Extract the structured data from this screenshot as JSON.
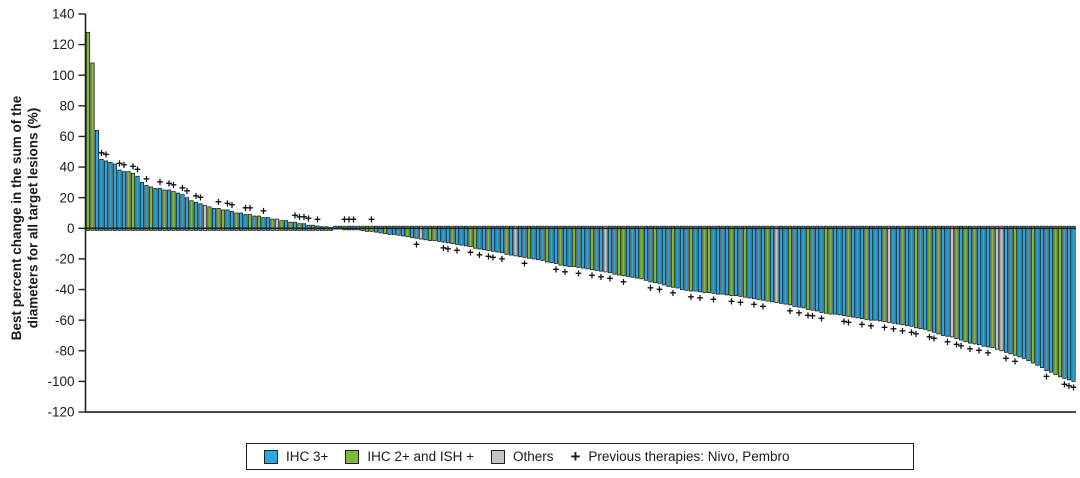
{
  "chart_data": {
    "type": "bar",
    "subtype": "waterfall",
    "ylabel_lines": [
      "Best percent change in the sum of the",
      "diameters for all target lesions (%)"
    ],
    "ylim": [
      -120,
      140
    ],
    "yticks": [
      140,
      120,
      100,
      80,
      60,
      40,
      20,
      0,
      -20,
      -40,
      -60,
      -80,
      -100,
      -120
    ],
    "zero_line": true,
    "grid": false,
    "legend_position": "bottom",
    "n_bars": 220,
    "values": [
      128,
      108,
      64,
      45,
      44,
      43,
      42,
      38,
      37,
      37,
      36,
      34,
      30,
      28,
      27,
      26,
      26,
      25,
      25,
      24,
      23,
      22,
      20,
      18,
      17,
      16,
      15,
      14,
      13,
      13,
      12,
      12,
      11,
      10,
      10,
      9,
      9,
      8,
      8,
      7,
      7,
      6,
      6,
      5,
      5,
      4,
      4,
      3,
      3,
      2,
      2,
      1.5,
      1,
      1,
      0.5,
      -0.5,
      -0.5,
      -1,
      -1,
      -1,
      -1,
      -1.5,
      -2,
      -2,
      -2.5,
      -3,
      -3.5,
      -4,
      -4,
      -4.5,
      -5,
      -5.5,
      -6,
      -6.5,
      -7,
      -7.5,
      -8,
      -8,
      -8.5,
      -9,
      -9.5,
      -10,
      -10.5,
      -11,
      -11.5,
      -12,
      -13,
      -13.5,
      -14,
      -14.5,
      -15,
      -15.5,
      -16,
      -17,
      -17.5,
      -18,
      -18.5,
      -19,
      -19.5,
      -20,
      -20.5,
      -21,
      -22,
      -22.5,
      -23,
      -24,
      -24.5,
      -25,
      -25,
      -25.5,
      -26,
      -26.5,
      -27,
      -27.5,
      -28,
      -28.5,
      -29,
      -30,
      -30.5,
      -31,
      -31.5,
      -32,
      -32.5,
      -33,
      -34,
      -35,
      -35.5,
      -36,
      -37,
      -38,
      -38.5,
      -39,
      -40,
      -40.5,
      -41,
      -41,
      -41.5,
      -42,
      -42,
      -42.5,
      -43,
      -43,
      -43.5,
      -44,
      -44,
      -44.5,
      -45,
      -45.5,
      -46,
      -46.5,
      -47,
      -47.5,
      -48,
      -48.5,
      -49,
      -49.5,
      -50,
      -51,
      -51.5,
      -52,
      -53,
      -53.5,
      -54,
      -55,
      -55.5,
      -56,
      -56,
      -56.5,
      -57,
      -57.5,
      -58,
      -58.5,
      -59,
      -59.5,
      -60,
      -60,
      -60.5,
      -61,
      -61.5,
      -62,
      -62.5,
      -63,
      -63.5,
      -64,
      -65,
      -65.5,
      -66,
      -67,
      -68,
      -69,
      -70,
      -70.5,
      -71,
      -72,
      -73,
      -74,
      -75,
      -75.5,
      -76,
      -77,
      -77.5,
      -78,
      -79,
      -80,
      -81,
      -82,
      -83,
      -84,
      -85,
      -86.5,
      -88,
      -89.5,
      -91,
      -93,
      -94,
      -95.5,
      -97,
      -98,
      -99,
      -100
    ],
    "color_codes": "ggbbbbbbbggbbbgbbgbgbbbgbbygbggbbgbbgbgbbgygbgbgbbgbbgbbbgbbybggbbgbbbbgbbybggbbbgbbbggbbgbbbgbybbgbbbgbbgbbgbbbgbbybbggbbbgbbgbbbgbbbgbbggbbbbgbbgbbbbgbybbgbbbgbbbggbbbgbbbgbbbgybbgbbgbbgbgbbygbgbgbbbgyybbgbbbgbbbbggbbb",
    "color_map": {
      "b": "#29a8e0",
      "g": "#7dba3c",
      "y": "#c4c4c6"
    },
    "outline_color": "#1a1a1a",
    "plus_indices": [
      3,
      4,
      7,
      8,
      10,
      11,
      13,
      16,
      18,
      19,
      21,
      22,
      24,
      25,
      29,
      31,
      32,
      35,
      36,
      39,
      46,
      47,
      48,
      49,
      51,
      57,
      58,
      59,
      63,
      73,
      79,
      80,
      82,
      85,
      87,
      89,
      90,
      92,
      97,
      104,
      106,
      109,
      112,
      114,
      116,
      119,
      125,
      127,
      130,
      134,
      136,
      139,
      143,
      145,
      148,
      150,
      156,
      158,
      160,
      161,
      163,
      168,
      169,
      172,
      174,
      177,
      179,
      181,
      183,
      184,
      187,
      188,
      191,
      193,
      194,
      196,
      198,
      200,
      204,
      206,
      213,
      217,
      218,
      219
    ],
    "legend_items": [
      {
        "swatch": "#29a8e0",
        "label": "IHC 3+"
      },
      {
        "swatch": "#7dba3c",
        "label": "IHC 2+ and ISH +"
      },
      {
        "swatch": "#c4c4c6",
        "label": "Others"
      },
      {
        "marker": "+",
        "label": "Previous therapies: Nivo, Pembro"
      }
    ]
  }
}
